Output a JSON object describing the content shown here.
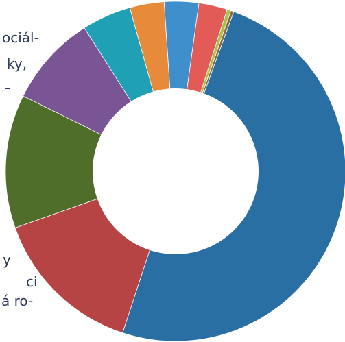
{
  "chart_data": {
    "type": "pie",
    "style": "donut",
    "title": "",
    "values": [
      53.0,
      15.6,
      13.6,
      9.3,
      5.0,
      3.5,
      3.5,
      2.9,
      0.4,
      0.3
    ],
    "colors": [
      "#2a6fa3",
      "#b64444",
      "#4e6e2a",
      "#7a5595",
      "#20a0b5",
      "#e78a3a",
      "#3f8fcd",
      "#e25b57",
      "#a8c24a",
      "#8b6a4a"
    ],
    "text_fragments": [
      "ociál-",
      "ky,",
      "–",
      "y",
      "ci",
      "á ro-"
    ]
  }
}
